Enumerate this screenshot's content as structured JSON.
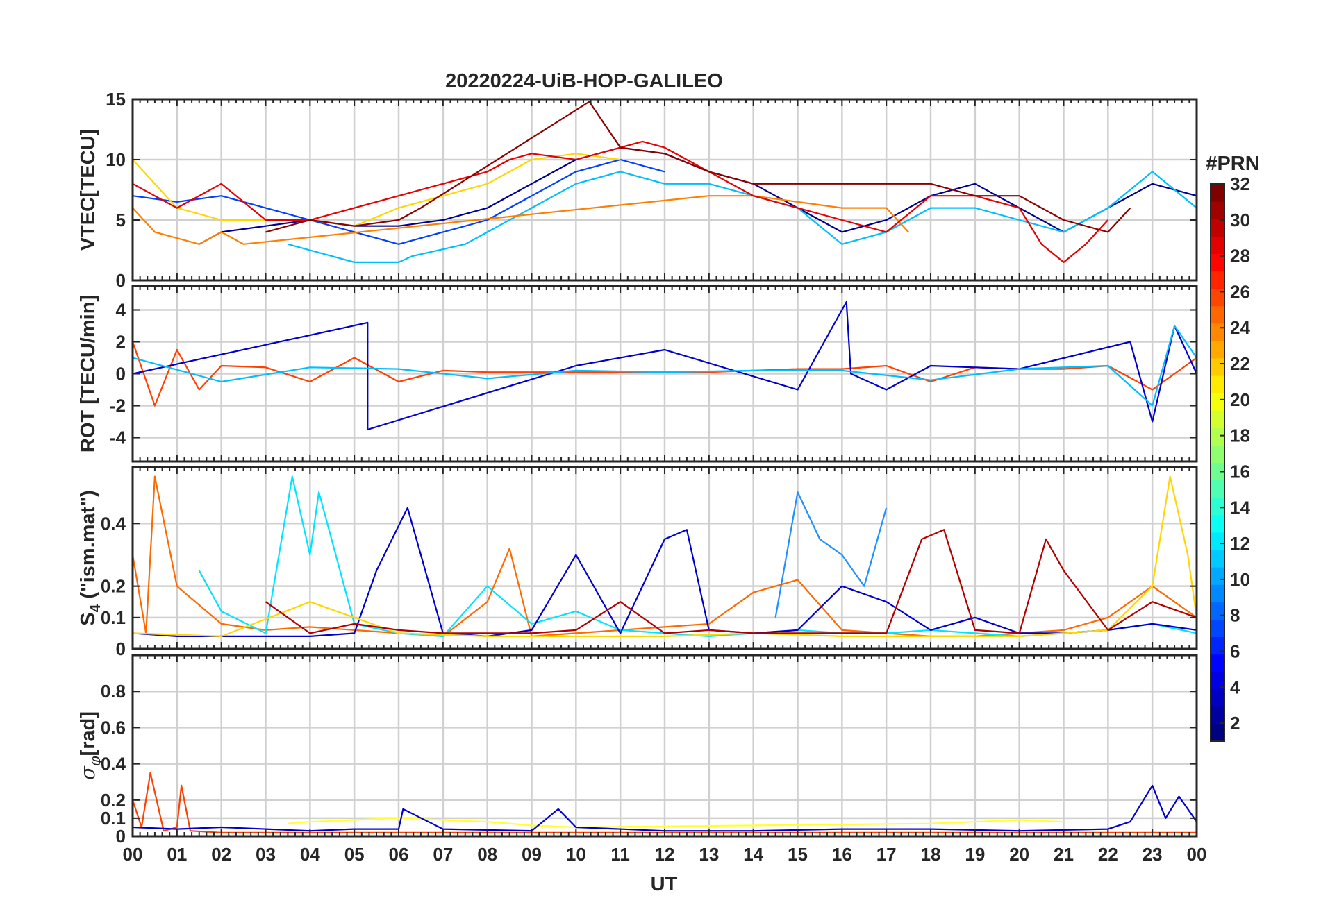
{
  "figure": {
    "title": "20220224-UiB-HOP-GALILEO",
    "x_label": "UT",
    "x_ticks": [
      "00",
      "01",
      "02",
      "03",
      "04",
      "05",
      "06",
      "07",
      "08",
      "09",
      "10",
      "11",
      "12",
      "13",
      "14",
      "15",
      "16",
      "17",
      "18",
      "19",
      "20",
      "21",
      "22",
      "23",
      "00"
    ],
    "colorbar": {
      "label": "#PRN",
      "min": 1,
      "max": 32,
      "ticks": [
        2,
        4,
        6,
        8,
        10,
        12,
        14,
        16,
        18,
        20,
        22,
        24,
        26,
        28,
        30,
        32
      ],
      "colormap": "jet",
      "levels": 32
    }
  },
  "chart_data": [
    {
      "type": "line",
      "panel": "vtec",
      "ylabel": "VTEC[TECU]",
      "ylim": [
        0,
        15
      ],
      "yticks": [
        "0",
        "5",
        "10",
        "15"
      ],
      "ytick_values": [
        0,
        5,
        10,
        15
      ],
      "xlim": [
        0,
        24
      ],
      "grid": true,
      "series": [
        {
          "color": "#00008f",
          "x": [
            1.5,
            2,
            3,
            4,
            5,
            6,
            7,
            8,
            9,
            10,
            11,
            12,
            13,
            14,
            15,
            16,
            17,
            18,
            19,
            20,
            21,
            22,
            23,
            24
          ],
          "values": [
            3,
            4,
            4.5,
            5,
            4.5,
            4.5,
            5,
            6,
            8,
            10,
            11,
            10.5,
            9,
            8,
            6,
            4,
            5,
            7,
            8,
            6,
            4,
            6,
            8,
            7
          ]
        },
        {
          "color": "#0040ff",
          "x": [
            0,
            1,
            2,
            3,
            4,
            5,
            6,
            7,
            8,
            9,
            10,
            11,
            12
          ],
          "values": [
            7,
            6.5,
            7,
            6,
            5,
            4,
            3,
            4,
            5,
            7,
            9,
            10,
            9
          ]
        },
        {
          "color": "#00bfff",
          "x": [
            3.5,
            4,
            5,
            6,
            6.3,
            7.5,
            8,
            9,
            10,
            11,
            12,
            13,
            14,
            15,
            16,
            17,
            18,
            19,
            20,
            21,
            22,
            23,
            24
          ],
          "values": [
            3,
            2.5,
            1.5,
            1.5,
            2,
            3,
            4,
            6,
            8,
            9,
            8,
            8,
            7,
            6,
            3,
            4,
            6,
            6,
            5,
            4,
            6,
            9,
            6
          ]
        },
        {
          "color": "#ffd700",
          "x": [
            0,
            1,
            2,
            3,
            4,
            5,
            6,
            7,
            8,
            9,
            10,
            11
          ],
          "values": [
            10,
            6,
            5,
            5,
            5,
            4.5,
            6,
            7,
            8,
            10,
            10.5,
            10
          ]
        },
        {
          "color": "#ff8000",
          "x": [
            0,
            0.5,
            1,
            1.5,
            2,
            2.5,
            13,
            14,
            15,
            16,
            17,
            17.5
          ],
          "values": [
            6,
            4,
            3.5,
            3,
            4,
            3,
            7,
            7,
            6.5,
            6,
            6,
            4
          ]
        },
        {
          "color": "#e60000",
          "x": [
            0,
            1,
            2,
            3,
            4,
            5,
            6,
            7,
            8,
            8.5,
            9,
            10,
            11,
            11.5,
            12,
            13,
            14,
            15,
            16,
            17,
            18,
            19,
            20,
            20.5,
            21,
            21.5,
            22
          ],
          "values": [
            8,
            6,
            8,
            5,
            5,
            6,
            7,
            8,
            9,
            10,
            10.5,
            10,
            11,
            11.5,
            11,
            9,
            7,
            6,
            5,
            4,
            7,
            7,
            6,
            3,
            1.5,
            3,
            5
          ]
        },
        {
          "color": "#8b0000",
          "x": [
            3,
            4,
            5,
            6,
            6.5,
            10.3,
            11,
            12,
            13,
            14,
            14.5,
            18,
            19,
            20,
            21,
            22,
            22.5
          ],
          "values": [
            4,
            5,
            4.5,
            5,
            6,
            14.8,
            11,
            10.5,
            9,
            8,
            8,
            8,
            7,
            7,
            5,
            4,
            6
          ]
        }
      ]
    },
    {
      "type": "line",
      "panel": "rot",
      "ylabel": "ROT [TECU/min]",
      "ylim": [
        -5.5,
        5.5
      ],
      "yticks": [
        "4",
        "2",
        "0",
        "-2",
        "-4"
      ],
      "ytick_values": [
        4,
        2,
        0,
        -2,
        -4
      ],
      "xlim": [
        0,
        24
      ],
      "grid": true,
      "series": [
        {
          "color": "#ff4000",
          "x": [
            0,
            0.5,
            1,
            1.5,
            2,
            3,
            4,
            5,
            6,
            7,
            8,
            9,
            10,
            11,
            12,
            13,
            14,
            15,
            16,
            17,
            18,
            19,
            20,
            21,
            22,
            23,
            24
          ],
          "values": [
            2,
            -2,
            1.5,
            -1,
            0.5,
            0.4,
            -0.5,
            1,
            -0.5,
            0.2,
            0.1,
            0.1,
            0.1,
            0.1,
            0.1,
            0.1,
            0.2,
            0.3,
            0.3,
            0.5,
            -0.5,
            0.4,
            0.3,
            0.3,
            0.5,
            -1,
            1
          ]
        },
        {
          "color": "#0000cd",
          "x": [
            0,
            5.3,
            5.3,
            10,
            12,
            15,
            16.1,
            16.2,
            17,
            18,
            20,
            22.5,
            23,
            23.5,
            24
          ],
          "values": [
            0,
            3.2,
            -3.5,
            0.5,
            1.5,
            -1,
            4.5,
            0,
            -1,
            0.5,
            0.3,
            2,
            -3,
            3,
            0
          ]
        },
        {
          "color": "#00bfff",
          "x": [
            0,
            2,
            4,
            6,
            8,
            10,
            12,
            14,
            16,
            18,
            20,
            22,
            23,
            23.5,
            24
          ],
          "values": [
            1,
            -0.5,
            0.4,
            0.3,
            -0.3,
            0.2,
            0.1,
            0.2,
            0.2,
            -0.4,
            0.3,
            0.5,
            -2,
            3,
            1
          ]
        }
      ]
    },
    {
      "type": "line",
      "panel": "s4",
      "ylabel": "S4 (\"ism.mat\")",
      "ylim": [
        0,
        0.58
      ],
      "yticks": [
        "0",
        "0.1",
        "0.2",
        "0.4"
      ],
      "ytick_values": [
        0,
        0.1,
        0.2,
        0.4
      ],
      "xlim": [
        0,
        24
      ],
      "grid": true,
      "series": [
        {
          "color": "#ff6a00",
          "x": [
            0,
            0.3,
            0.5,
            1,
            2,
            3,
            4,
            5,
            6,
            7,
            8,
            8.5,
            9,
            10,
            11,
            12,
            13,
            14,
            15,
            16,
            17,
            18,
            19,
            20,
            21,
            22,
            23,
            24
          ],
          "values": [
            0.3,
            0.05,
            0.55,
            0.2,
            0.08,
            0.06,
            0.07,
            0.06,
            0.05,
            0.04,
            0.15,
            0.32,
            0.04,
            0.05,
            0.06,
            0.07,
            0.08,
            0.18,
            0.22,
            0.06,
            0.05,
            0.04,
            0.04,
            0.05,
            0.06,
            0.1,
            0.2,
            0.1
          ]
        },
        {
          "color": "#00e5ff",
          "x": [
            1.5,
            2,
            3,
            3.6,
            4,
            4.2,
            5,
            6,
            7,
            8,
            9,
            10,
            11,
            12,
            13,
            14,
            15,
            16,
            17,
            18,
            19,
            20,
            21,
            22,
            23,
            24
          ],
          "values": [
            0.25,
            0.12,
            0.05,
            0.55,
            0.3,
            0.5,
            0.08,
            0.05,
            0.04,
            0.2,
            0.08,
            0.12,
            0.06,
            0.05,
            0.04,
            0.05,
            0.06,
            0.05,
            0.05,
            0.06,
            0.05,
            0.04,
            0.05,
            0.06,
            0.08,
            0.05
          ]
        },
        {
          "color": "#0000cd",
          "x": [
            0,
            1,
            2,
            3,
            4,
            5,
            5.5,
            6.2,
            7,
            8,
            9,
            10,
            11,
            12,
            12.5,
            13,
            14,
            15,
            16,
            17,
            18,
            19,
            20,
            21,
            22,
            23,
            24
          ],
          "values": [
            0.05,
            0.04,
            0.04,
            0.04,
            0.04,
            0.05,
            0.25,
            0.45,
            0.05,
            0.04,
            0.06,
            0.3,
            0.05,
            0.35,
            0.38,
            0.06,
            0.05,
            0.06,
            0.2,
            0.15,
            0.06,
            0.1,
            0.05,
            0.05,
            0.06,
            0.08,
            0.06
          ]
        },
        {
          "color": "#1e90ff",
          "x": [
            14.5,
            15,
            15.5,
            16,
            16.5,
            17
          ],
          "values": [
            0.1,
            0.5,
            0.35,
            0.3,
            0.2,
            0.45
          ]
        },
        {
          "color": "#ffd700",
          "x": [
            0,
            2,
            4,
            6,
            8,
            10,
            12,
            14,
            16,
            18,
            20,
            22,
            23,
            23.4,
            23.8,
            24
          ],
          "values": [
            0.05,
            0.04,
            0.15,
            0.05,
            0.04,
            0.04,
            0.04,
            0.05,
            0.04,
            0.04,
            0.04,
            0.06,
            0.2,
            0.55,
            0.3,
            0.1
          ]
        },
        {
          "color": "#b00000",
          "x": [
            3,
            4,
            5,
            6,
            7,
            8,
            9,
            10,
            11,
            12,
            13,
            14,
            15,
            17,
            17.8,
            18.3,
            19,
            20,
            20.6,
            21,
            22,
            23,
            24
          ],
          "values": [
            0.15,
            0.05,
            0.08,
            0.06,
            0.05,
            0.05,
            0.05,
            0.06,
            0.15,
            0.05,
            0.06,
            0.05,
            0.05,
            0.05,
            0.35,
            0.38,
            0.06,
            0.05,
            0.35,
            0.25,
            0.06,
            0.15,
            0.1
          ]
        }
      ]
    },
    {
      "type": "line",
      "panel": "sigma_phi",
      "ylabel": "σφ[rad]",
      "ylim": [
        0,
        1
      ],
      "yticks": [
        "0",
        "0.1",
        "0.2",
        "0.4",
        "0.6",
        "0.8"
      ],
      "ytick_values": [
        0,
        0.1,
        0.2,
        0.4,
        0.6,
        0.8
      ],
      "xlim": [
        0,
        24
      ],
      "grid": true,
      "series": [
        {
          "color": "#ff4000",
          "x": [
            0,
            0.2,
            0.4,
            0.7,
            1,
            1.1,
            1.3,
            2,
            4,
            6,
            8,
            10,
            12,
            14,
            16,
            18,
            20,
            22,
            24
          ],
          "values": [
            0.2,
            0.05,
            0.35,
            0.03,
            0.05,
            0.28,
            0.03,
            0.02,
            0.02,
            0.02,
            0.02,
            0.02,
            0.02,
            0.02,
            0.02,
            0.02,
            0.02,
            0.02,
            0.02
          ]
        },
        {
          "color": "#ffff33",
          "x": [
            3.5,
            4,
            5,
            6,
            7,
            8,
            9,
            10,
            18,
            19,
            20,
            21
          ],
          "values": [
            0.07,
            0.08,
            0.09,
            0.1,
            0.09,
            0.08,
            0.06,
            0.05,
            0.07,
            0.08,
            0.09,
            0.08
          ]
        },
        {
          "color": "#0000cd",
          "x": [
            0,
            1,
            2,
            3,
            4,
            5,
            6,
            6.1,
            7,
            9,
            9.6,
            10,
            12,
            14,
            16,
            18,
            20,
            22,
            22.5,
            23,
            23.3,
            23.6,
            24
          ],
          "values": [
            0.05,
            0.04,
            0.05,
            0.04,
            0.03,
            0.04,
            0.04,
            0.15,
            0.04,
            0.03,
            0.15,
            0.05,
            0.03,
            0.03,
            0.04,
            0.04,
            0.03,
            0.04,
            0.08,
            0.28,
            0.1,
            0.22,
            0.08
          ]
        }
      ]
    }
  ]
}
